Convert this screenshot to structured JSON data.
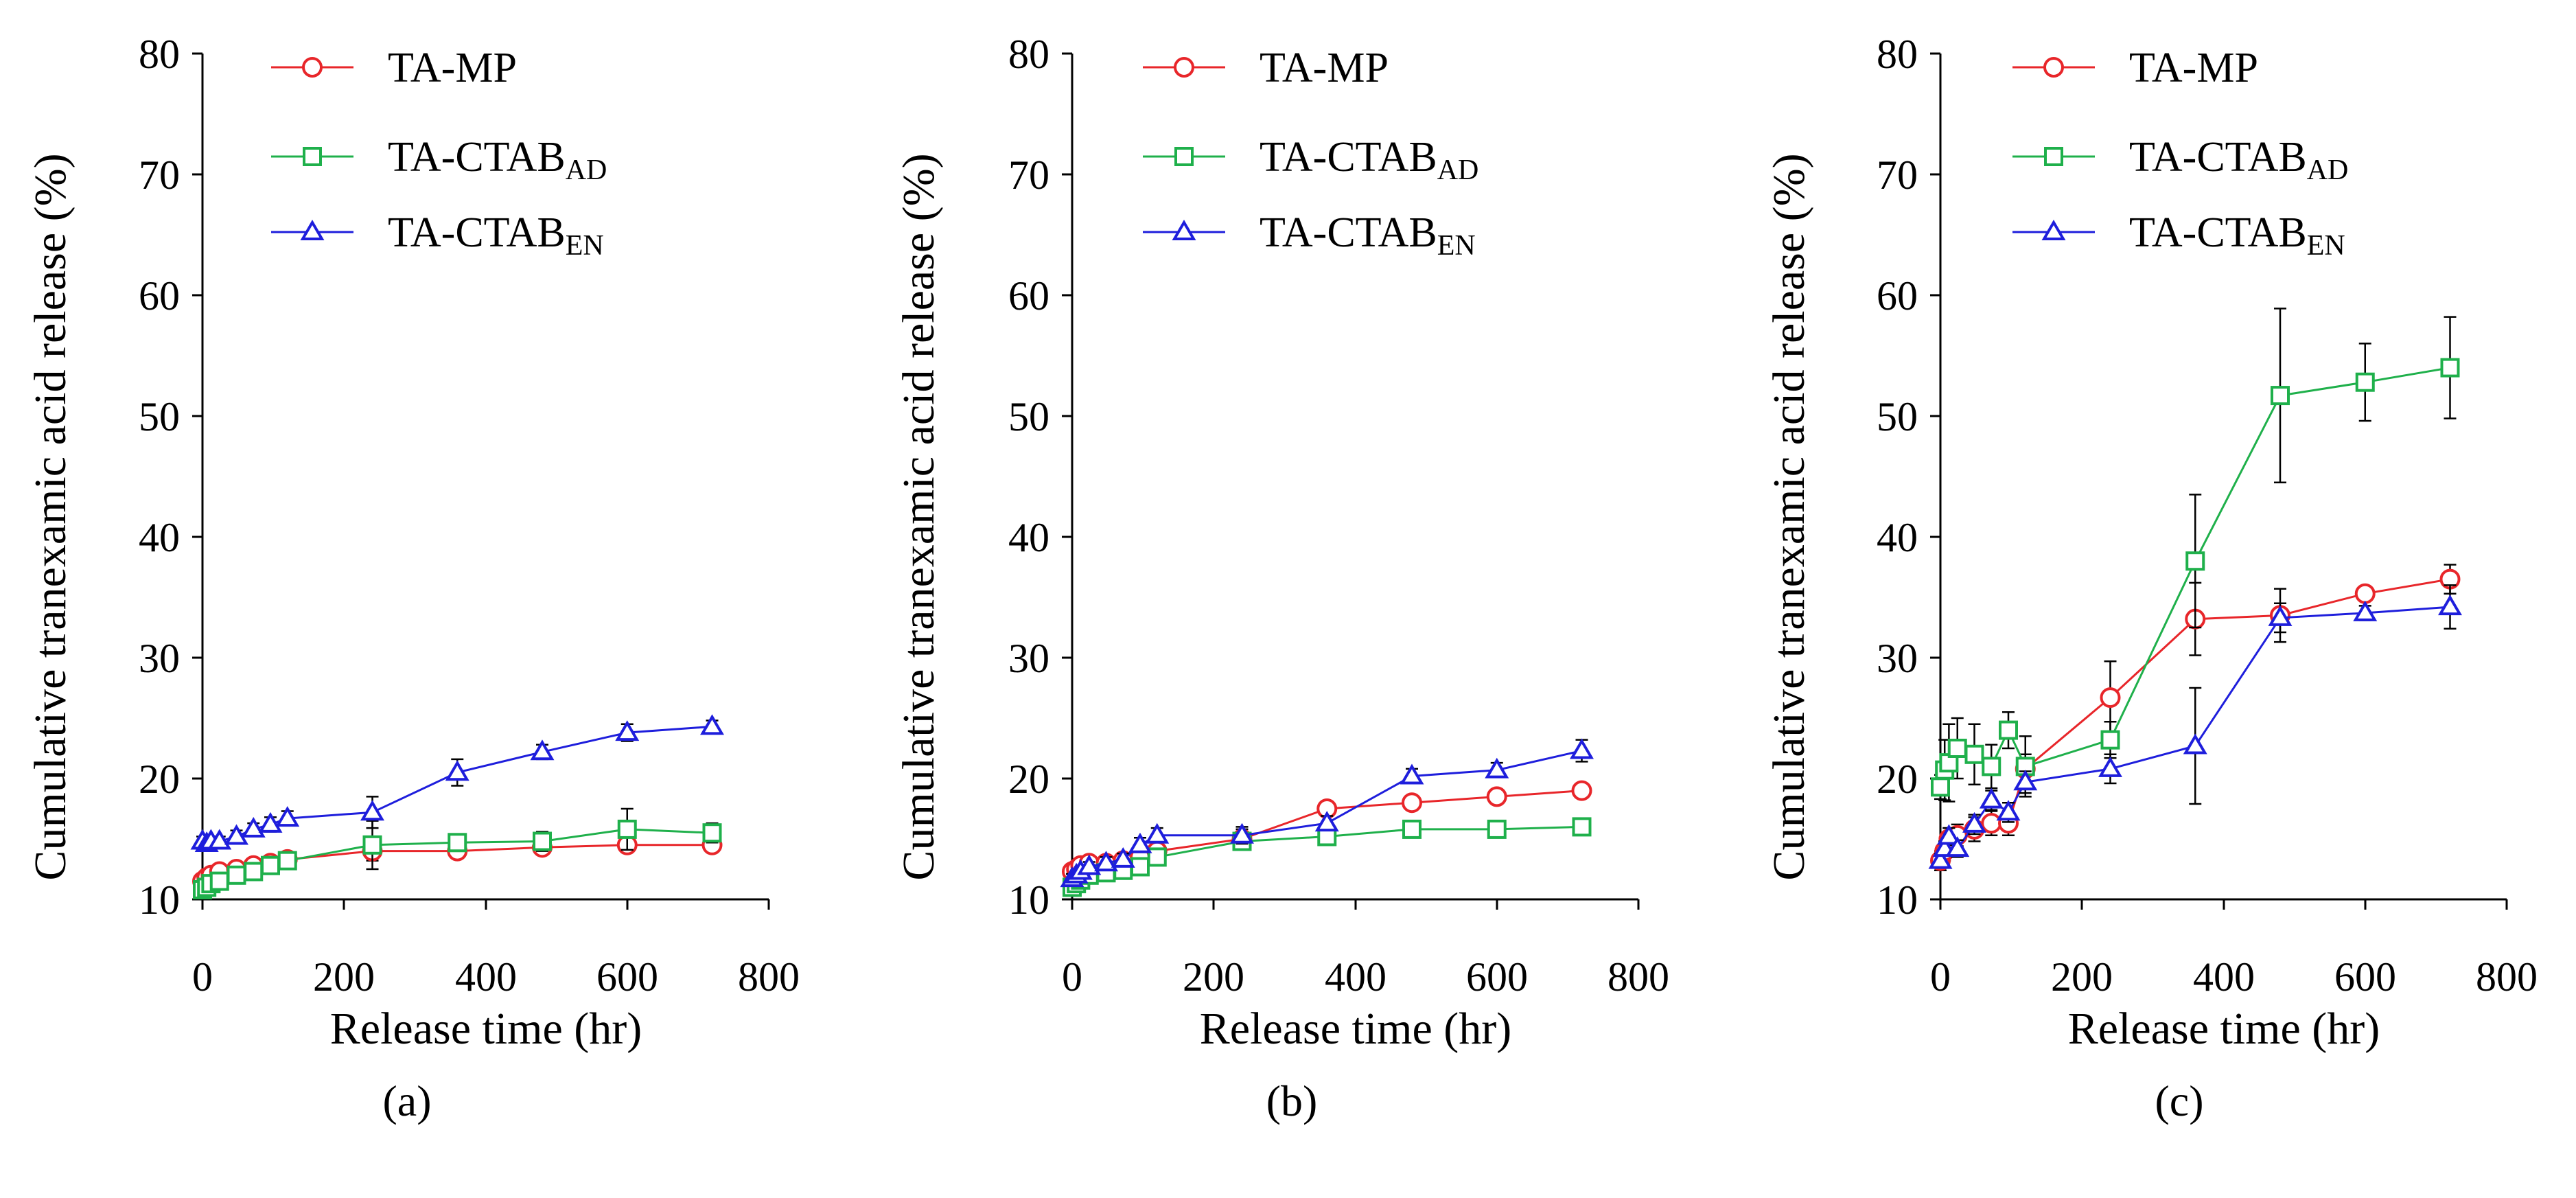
{
  "chart_data": [
    {
      "type": "line",
      "panel_label": "(a)",
      "xlabel": "Release time (hr)",
      "ylabel": "Cumulative tranexamic acid release (%)",
      "xlim": [
        0,
        800
      ],
      "ylim": [
        10,
        80
      ],
      "xticks": [
        "0",
        "200",
        "400",
        "600",
        "800"
      ],
      "yticks": [
        "10",
        "20",
        "30",
        "40",
        "50",
        "60",
        "70",
        "80"
      ],
      "legend_position": "top-left",
      "series": [
        {
          "name": "TA-MP",
          "label_main": "TA-MP",
          "label_sub": "",
          "color": "#e8262a",
          "marker": "circle",
          "x": [
            0,
            6,
            12,
            24,
            48,
            72,
            96,
            120,
            240,
            360,
            480,
            600,
            720
          ],
          "y": [
            11.5,
            11.8,
            12.0,
            12.3,
            12.5,
            12.8,
            13.0,
            13.3,
            14.0,
            14.0,
            14.3,
            14.5,
            14.5
          ],
          "err": [
            0.4,
            0.4,
            0.4,
            0.4,
            0.5,
            0.5,
            0.6,
            0.6,
            0.8,
            0.5,
            0.5,
            0.6,
            0.5
          ]
        },
        {
          "name": "TA-CTABAD",
          "label_main": "TA-CTAB",
          "label_sub": "AD",
          "color": "#1fb04b",
          "marker": "square",
          "x": [
            0,
            6,
            12,
            24,
            48,
            72,
            96,
            120,
            240,
            360,
            480,
            600,
            720
          ],
          "y": [
            10.8,
            11.0,
            11.3,
            11.5,
            12.0,
            12.3,
            12.8,
            13.2,
            14.5,
            14.7,
            14.8,
            15.8,
            15.5
          ],
          "err": [
            0.3,
            0.3,
            0.4,
            0.4,
            0.5,
            0.5,
            0.6,
            0.7,
            2.0,
            0.6,
            0.8,
            1.7,
            0.8
          ]
        },
        {
          "name": "TA-CTABEN",
          "label_main": "TA-CTAB",
          "label_sub": "EN",
          "color": "#1e1edc",
          "marker": "triangle",
          "x": [
            0,
            6,
            12,
            24,
            48,
            72,
            96,
            120,
            240,
            360,
            480,
            600,
            720
          ],
          "y": [
            14.8,
            14.6,
            14.8,
            14.8,
            15.2,
            15.8,
            16.2,
            16.7,
            17.2,
            20.5,
            22.2,
            23.8,
            24.3
          ],
          "err": [
            0.4,
            0.4,
            0.4,
            0.4,
            0.5,
            0.5,
            0.6,
            0.6,
            1.3,
            1.1,
            0.6,
            0.7,
            0.5
          ]
        }
      ]
    },
    {
      "type": "line",
      "panel_label": "(b)",
      "xlabel": "Release time (hr)",
      "ylabel": "Cumulative tranexamic acid release (%)",
      "xlim": [
        0,
        800
      ],
      "ylim": [
        10,
        80
      ],
      "xticks": [
        "0",
        "200",
        "400",
        "600",
        "800"
      ],
      "yticks": [
        "10",
        "20",
        "30",
        "40",
        "50",
        "60",
        "70",
        "80"
      ],
      "legend_position": "top-left",
      "series": [
        {
          "name": "TA-MP",
          "label_main": "TA-MP",
          "label_sub": "",
          "color": "#e8262a",
          "marker": "circle",
          "x": [
            0,
            6,
            12,
            24,
            48,
            72,
            96,
            120,
            240,
            360,
            480,
            600,
            720
          ],
          "y": [
            12.3,
            12.5,
            12.8,
            13.0,
            13.0,
            13.2,
            13.5,
            14.0,
            15.0,
            17.5,
            18.0,
            18.5,
            19.0
          ],
          "err": [
            0.4,
            0.4,
            0.4,
            0.4,
            0.5,
            0.5,
            0.5,
            0.6,
            0.8,
            0.6,
            0.6,
            0.6,
            0.6
          ]
        },
        {
          "name": "TA-CTABAD",
          "label_main": "TA-CTAB",
          "label_sub": "AD",
          "color": "#1fb04b",
          "marker": "square",
          "x": [
            0,
            6,
            12,
            24,
            48,
            72,
            96,
            120,
            240,
            360,
            480,
            600,
            720
          ],
          "y": [
            11.0,
            11.3,
            11.6,
            12.0,
            12.2,
            12.4,
            12.7,
            13.5,
            14.8,
            15.2,
            15.8,
            15.8,
            16.0
          ],
          "err": [
            0.3,
            0.3,
            0.4,
            0.4,
            0.4,
            0.5,
            0.5,
            0.6,
            0.7,
            0.6,
            0.6,
            0.6,
            0.6
          ]
        },
        {
          "name": "TA-CTABEN",
          "label_main": "TA-CTAB",
          "label_sub": "EN",
          "color": "#1e1edc",
          "marker": "triangle",
          "x": [
            0,
            6,
            12,
            24,
            48,
            72,
            96,
            120,
            240,
            360,
            480,
            600,
            720
          ],
          "y": [
            11.7,
            12.0,
            12.3,
            12.7,
            13.0,
            13.3,
            14.5,
            15.3,
            15.3,
            16.3,
            20.2,
            20.7,
            22.3
          ],
          "err": [
            0.4,
            0.4,
            0.4,
            0.4,
            0.5,
            0.5,
            0.6,
            0.6,
            0.7,
            0.6,
            0.6,
            0.6,
            0.9
          ]
        }
      ]
    },
    {
      "type": "line",
      "panel_label": "(c)",
      "xlabel": "Release time (hr)",
      "ylabel": "Cumulative tranexamic acid release (%)",
      "xlim": [
        0,
        800
      ],
      "ylim": [
        10,
        80
      ],
      "xticks": [
        "0",
        "200",
        "400",
        "600",
        "800"
      ],
      "yticks": [
        "10",
        "20",
        "30",
        "40",
        "50",
        "60",
        "70",
        "80"
      ],
      "legend_position": "top-left",
      "series": [
        {
          "name": "TA-MP",
          "label_main": "TA-MP",
          "label_sub": "",
          "color": "#e8262a",
          "marker": "circle",
          "x": [
            0,
            6,
            12,
            24,
            48,
            72,
            96,
            120,
            240,
            360,
            480,
            600,
            720
          ],
          "y": [
            13.2,
            14.0,
            15.0,
            15.3,
            15.8,
            16.3,
            16.3,
            20.8,
            26.7,
            33.2,
            33.5,
            35.3,
            36.5
          ],
          "err": [
            0.8,
            0.8,
            0.9,
            0.9,
            1.0,
            1.0,
            1.0,
            1.2,
            3.0,
            3.0,
            2.2,
            0.6,
            1.2
          ]
        },
        {
          "name": "TA-CTABAD",
          "label_main": "TA-CTAB",
          "label_sub": "AD",
          "color": "#1fb04b",
          "marker": "square",
          "x": [
            0,
            6,
            12,
            24,
            48,
            72,
            96,
            120,
            240,
            360,
            480,
            600,
            720
          ],
          "y": [
            19.3,
            20.7,
            21.3,
            22.5,
            22.0,
            21.0,
            24.0,
            21.0,
            23.2,
            38.0,
            51.7,
            52.8,
            54.0
          ],
          "err": [
            1.0,
            2.5,
            3.2,
            2.5,
            2.5,
            1.8,
            1.5,
            2.5,
            1.5,
            5.5,
            7.2,
            3.2,
            4.2
          ]
        },
        {
          "name": "TA-CTABEN",
          "label_main": "TA-CTAB",
          "label_sub": "EN",
          "color": "#1e1edc",
          "marker": "triangle",
          "x": [
            0,
            6,
            12,
            24,
            48,
            72,
            96,
            120,
            240,
            360,
            480,
            600,
            720
          ],
          "y": [
            13.2,
            14.2,
            15.2,
            14.2,
            16.2,
            18.2,
            17.2,
            19.7,
            20.8,
            22.7,
            33.3,
            33.7,
            34.2
          ],
          "err": [
            0.6,
            0.6,
            0.7,
            0.7,
            0.8,
            0.8,
            0.8,
            0.9,
            1.2,
            4.8,
            1.2,
            0.6,
            1.8
          ]
        }
      ]
    }
  ]
}
